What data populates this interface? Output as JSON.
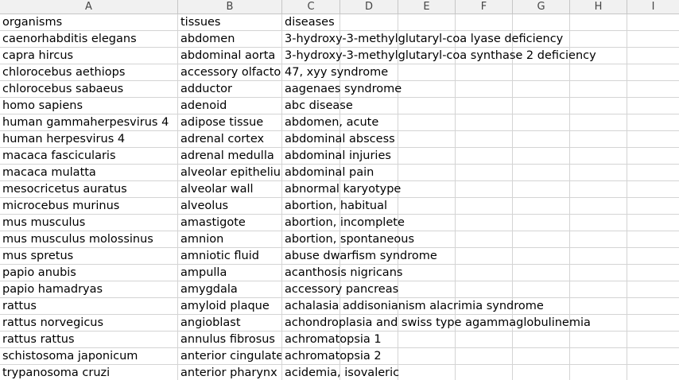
{
  "columns": [
    "A",
    "B",
    "C",
    "D",
    "E",
    "F",
    "G",
    "H",
    "I"
  ],
  "rows": [
    [
      "organisms",
      "tissues",
      "diseases"
    ],
    [
      "caenorhabditis elegans",
      "abdomen",
      "3-hydroxy-3-methylglutaryl-coa lyase deficiency"
    ],
    [
      "capra hircus",
      "abdominal aorta",
      "3-hydroxy-3-methylglutaryl-coa synthase 2 deficiency"
    ],
    [
      "chlorocebus aethiops",
      "accessory olfactory",
      "47, xyy syndrome"
    ],
    [
      "chlorocebus sabaeus",
      "adductor",
      "aagenaes syndrome"
    ],
    [
      "homo sapiens",
      "adenoid",
      "abc disease"
    ],
    [
      "human gammaherpesvirus 4",
      "adipose tissue",
      "abdomen, acute"
    ],
    [
      "human herpesvirus 4",
      "adrenal cortex",
      "abdominal abscess"
    ],
    [
      "macaca fascicularis",
      "adrenal medulla",
      "abdominal injuries"
    ],
    [
      "macaca mulatta",
      "alveolar epithelium",
      "abdominal pain"
    ],
    [
      "mesocricetus auratus",
      "alveolar wall",
      "abnormal karyotype"
    ],
    [
      "microcebus murinus",
      "alveolus",
      "abortion, habitual"
    ],
    [
      "mus musculus",
      "amastigote",
      "abortion, incomplete"
    ],
    [
      "mus musculus molossinus",
      "amnion",
      "abortion, spontaneous"
    ],
    [
      "mus spretus",
      "amniotic fluid",
      "abuse dwarfism syndrome"
    ],
    [
      "papio anubis",
      "ampulla",
      "acanthosis nigricans"
    ],
    [
      "papio hamadryas",
      "amygdala",
      "accessory pancreas"
    ],
    [
      "rattus",
      "amyloid plaque",
      "achalasia addisonianism alacrimia syndrome"
    ],
    [
      "rattus norvegicus",
      "angioblast",
      "achondroplasia and swiss type agammaglobulinemia"
    ],
    [
      "rattus rattus",
      "annulus fibrosus",
      "achromatopsia 1"
    ],
    [
      "schistosoma japonicum",
      "anterior cingulate",
      "achromatopsia 2"
    ],
    [
      "trypanosoma cruzi",
      "anterior pharynx",
      "acidemia, isovaleric"
    ]
  ]
}
